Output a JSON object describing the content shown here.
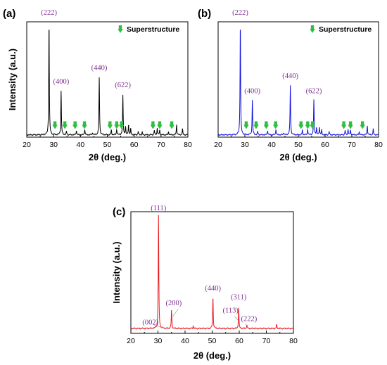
{
  "figure": {
    "panels": [
      "(a)",
      "(b)",
      "(c)"
    ],
    "legend_label": "Superstructure",
    "marker_color": "#2fbf3f",
    "label_color": "#7b2d8e"
  },
  "chart_data": [
    {
      "id": "a",
      "panel_label": "(a)",
      "type": "line",
      "xlabel": "2θ (deg.)",
      "ylabel": "Intensity (a.u.)",
      "xlim": [
        20,
        80
      ],
      "xticks": [
        20,
        30,
        40,
        50,
        60,
        70,
        80
      ],
      "series_color": "#000000",
      "baseline": 0.02,
      "legend": {
        "label": "Superstructure",
        "placement": "top-right"
      },
      "peaks": [
        {
          "x": 28.3,
          "h": 0.98
        },
        {
          "x": 32.8,
          "h": 0.38
        },
        {
          "x": 34.8,
          "h": 0.03
        },
        {
          "x": 38.5,
          "h": 0.04
        },
        {
          "x": 41.6,
          "h": 0.05
        },
        {
          "x": 44.5,
          "h": 0.02
        },
        {
          "x": 47.0,
          "h": 0.5
        },
        {
          "x": 51.5,
          "h": 0.04
        },
        {
          "x": 53.5,
          "h": 0.05
        },
        {
          "x": 55.8,
          "h": 0.34
        },
        {
          "x": 56.8,
          "h": 0.07
        },
        {
          "x": 57.9,
          "h": 0.09
        },
        {
          "x": 58.7,
          "h": 0.05
        },
        {
          "x": 61.5,
          "h": 0.03
        },
        {
          "x": 63.0,
          "h": 0.02
        },
        {
          "x": 67.5,
          "h": 0.04
        },
        {
          "x": 68.6,
          "h": 0.06
        },
        {
          "x": 69.5,
          "h": 0.04
        },
        {
          "x": 72.8,
          "h": 0.03
        },
        {
          "x": 75.8,
          "h": 0.09
        },
        {
          "x": 78.0,
          "h": 0.05
        }
      ],
      "labels": [
        {
          "text": "(222)",
          "x": 28.3,
          "y": 1.05
        },
        {
          "text": "(400)",
          "x": 32.8,
          "y": 0.45
        },
        {
          "text": "(440)",
          "x": 47.0,
          "y": 0.57
        },
        {
          "text": "(622)",
          "x": 55.8,
          "y": 0.42
        }
      ],
      "markers": [
        30.5,
        34.2,
        38.0,
        41.5,
        51.0,
        53.5,
        55.3,
        67.0,
        69.5,
        74.0
      ]
    },
    {
      "id": "b",
      "panel_label": "(b)",
      "type": "line",
      "xlabel": "2θ (deg.)",
      "ylabel": "",
      "xlim": [
        20,
        80
      ],
      "xticks": [
        20,
        30,
        40,
        50,
        60,
        70,
        80
      ],
      "series_color": "#1111dd",
      "baseline": 0.02,
      "legend": {
        "label": "Superstructure",
        "placement": "top-right"
      },
      "peaks": [
        {
          "x": 28.3,
          "h": 0.98
        },
        {
          "x": 32.8,
          "h": 0.3
        },
        {
          "x": 34.8,
          "h": 0.03
        },
        {
          "x": 38.5,
          "h": 0.04
        },
        {
          "x": 41.6,
          "h": 0.05
        },
        {
          "x": 44.5,
          "h": 0.02
        },
        {
          "x": 47.0,
          "h": 0.43
        },
        {
          "x": 51.5,
          "h": 0.04
        },
        {
          "x": 53.5,
          "h": 0.05
        },
        {
          "x": 55.8,
          "h": 0.3
        },
        {
          "x": 56.8,
          "h": 0.06
        },
        {
          "x": 57.9,
          "h": 0.07
        },
        {
          "x": 58.7,
          "h": 0.04
        },
        {
          "x": 61.5,
          "h": 0.03
        },
        {
          "x": 67.5,
          "h": 0.04
        },
        {
          "x": 68.6,
          "h": 0.05
        },
        {
          "x": 69.5,
          "h": 0.04
        },
        {
          "x": 72.8,
          "h": 0.03
        },
        {
          "x": 75.8,
          "h": 0.08
        },
        {
          "x": 78.0,
          "h": 0.05
        }
      ],
      "labels": [
        {
          "text": "(222)",
          "x": 28.3,
          "y": 1.05
        },
        {
          "text": "(400)",
          "x": 32.8,
          "y": 0.37
        },
        {
          "text": "(440)",
          "x": 47.0,
          "y": 0.5
        },
        {
          "text": "(622)",
          "x": 55.8,
          "y": 0.37
        }
      ],
      "markers": [
        30.5,
        34.2,
        38.0,
        41.5,
        51.0,
        53.5,
        55.3,
        67.0,
        69.5,
        74.0
      ]
    },
    {
      "id": "c",
      "panel_label": "(c)",
      "type": "line",
      "xlabel": "2θ (deg.)",
      "ylabel": "Intensity (a.u.)",
      "xlim": [
        20,
        80
      ],
      "xticks": [
        20,
        30,
        40,
        50,
        60,
        70,
        80
      ],
      "series_color": "#e8191f",
      "baseline": 0.04,
      "peaks": [
        {
          "x": 30.2,
          "h": 0.93
        },
        {
          "x": 35.0,
          "h": 0.15
        },
        {
          "x": 43.0,
          "h": 0.02
        },
        {
          "x": 50.3,
          "h": 0.26
        },
        {
          "x": 59.8,
          "h": 0.17
        },
        {
          "x": 62.8,
          "h": 0.03
        },
        {
          "x": 73.8,
          "h": 0.03
        }
      ],
      "labels": [
        {
          "text": "(111)",
          "x": 30.2,
          "y": 1.0
        },
        {
          "text": "(002)",
          "x": 27.2,
          "y": 0.06
        },
        {
          "text": "(200)",
          "x": 35.8,
          "y": 0.22
        },
        {
          "text": "(440)",
          "x": 50.3,
          "y": 0.34
        },
        {
          "text": "(113)",
          "x": 56.8,
          "y": 0.16
        },
        {
          "text": "(311)",
          "x": 59.8,
          "y": 0.27
        },
        {
          "text": "(222)",
          "x": 63.6,
          "y": 0.09
        }
      ]
    }
  ]
}
